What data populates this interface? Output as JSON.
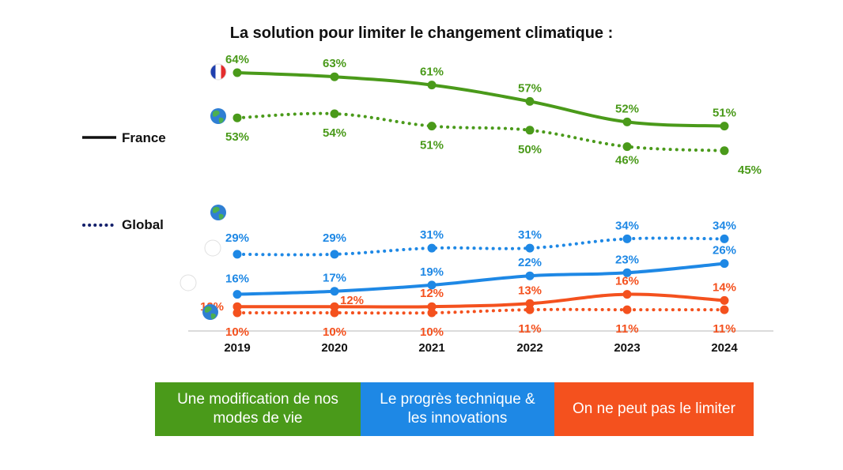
{
  "chart_data": {
    "type": "line",
    "title": "La solution pour limiter le changement climatique :",
    "categories": [
      "2019",
      "2020",
      "2021",
      "2022",
      "2023",
      "2024"
    ],
    "value_format": "{v}%",
    "legend": {
      "solid_label": "France",
      "dotted_label": "Global"
    },
    "colors": {
      "green": "#4a9a1a",
      "blue": "#1e88e5",
      "orange": "#f4511e",
      "legend_dot": "#14206b"
    },
    "series": [
      {
        "name": "Une modification de nos modes de vie — France",
        "group": "green",
        "style": "solid",
        "marker": "france-flag",
        "values": [
          64,
          63,
          61,
          57,
          52,
          51
        ]
      },
      {
        "name": "Une modification de nos modes de vie — Global",
        "group": "green",
        "style": "dotted",
        "marker": "globe",
        "values": [
          53,
          54,
          51,
          50,
          46,
          45
        ]
      },
      {
        "name": "Le progrès technique & les innovations — Global",
        "group": "blue",
        "style": "dotted",
        "marker": "globe",
        "values": [
          29,
          29,
          31,
          31,
          34,
          34
        ]
      },
      {
        "name": "Le progrès technique & les innovations — France",
        "group": "blue",
        "style": "solid",
        "marker": "france-flag",
        "values": [
          16,
          17,
          19,
          22,
          23,
          26
        ]
      },
      {
        "name": "On ne peut pas le limiter — France",
        "group": "orange",
        "style": "solid",
        "marker": "france-flag",
        "values": [
          12,
          12,
          12,
          13,
          16,
          14
        ]
      },
      {
        "name": "On ne peut pas le limiter — Global",
        "group": "orange",
        "style": "dotted",
        "marker": "globe",
        "values": [
          10,
          10,
          10,
          11,
          11,
          11
        ]
      }
    ],
    "categories_legend": [
      {
        "label": "Une modification de nos modes de vie",
        "color": "#4a9a1a"
      },
      {
        "label": "Le progrès technique & les innovations",
        "color": "#1e88e5"
      },
      {
        "label": "On ne peut pas le limiter",
        "color": "#f4511e"
      }
    ]
  }
}
